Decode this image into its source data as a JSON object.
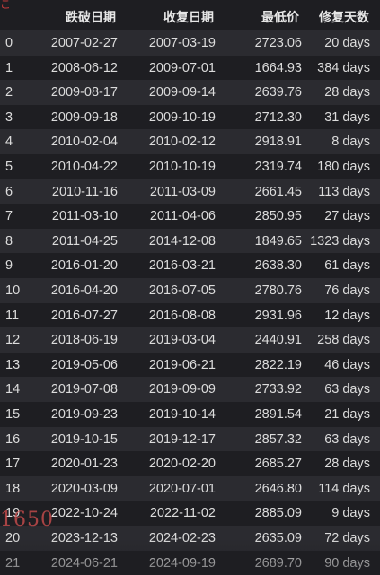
{
  "table": {
    "headers": {
      "index": "",
      "break_date": "跌破日期",
      "recover_date": "收复日期",
      "low_price": "最低价",
      "repair_days": "修复天数"
    },
    "rows": [
      {
        "index": "0",
        "break_date": "2007-02-27",
        "recover_date": "2007-03-19",
        "low_price": "2723.06",
        "repair_days": "20 days"
      },
      {
        "index": "1",
        "break_date": "2008-06-12",
        "recover_date": "2009-07-01",
        "low_price": "1664.93",
        "repair_days": "384 days"
      },
      {
        "index": "2",
        "break_date": "2009-08-17",
        "recover_date": "2009-09-14",
        "low_price": "2639.76",
        "repair_days": "28 days"
      },
      {
        "index": "3",
        "break_date": "2009-09-18",
        "recover_date": "2009-10-19",
        "low_price": "2712.30",
        "repair_days": "31 days"
      },
      {
        "index": "4",
        "break_date": "2010-02-04",
        "recover_date": "2010-02-12",
        "low_price": "2918.91",
        "repair_days": "8 days"
      },
      {
        "index": "5",
        "break_date": "2010-04-22",
        "recover_date": "2010-10-19",
        "low_price": "2319.74",
        "repair_days": "180 days"
      },
      {
        "index": "6",
        "break_date": "2010-11-16",
        "recover_date": "2011-03-09",
        "low_price": "2661.45",
        "repair_days": "113 days"
      },
      {
        "index": "7",
        "break_date": "2011-03-10",
        "recover_date": "2011-04-06",
        "low_price": "2850.95",
        "repair_days": "27 days"
      },
      {
        "index": "8",
        "break_date": "2011-04-25",
        "recover_date": "2014-12-08",
        "low_price": "1849.65",
        "repair_days": "1323 days"
      },
      {
        "index": "9",
        "break_date": "2016-01-20",
        "recover_date": "2016-03-21",
        "low_price": "2638.30",
        "repair_days": "61 days"
      },
      {
        "index": "10",
        "break_date": "2016-04-20",
        "recover_date": "2016-07-05",
        "low_price": "2780.76",
        "repair_days": "76 days"
      },
      {
        "index": "11",
        "break_date": "2016-07-27",
        "recover_date": "2016-08-08",
        "low_price": "2931.96",
        "repair_days": "12 days"
      },
      {
        "index": "12",
        "break_date": "2018-06-19",
        "recover_date": "2019-03-04",
        "low_price": "2440.91",
        "repair_days": "258 days"
      },
      {
        "index": "13",
        "break_date": "2019-05-06",
        "recover_date": "2019-06-21",
        "low_price": "2822.19",
        "repair_days": "46 days"
      },
      {
        "index": "14",
        "break_date": "2019-07-08",
        "recover_date": "2019-09-09",
        "low_price": "2733.92",
        "repair_days": "63 days"
      },
      {
        "index": "15",
        "break_date": "2019-09-23",
        "recover_date": "2019-10-14",
        "low_price": "2891.54",
        "repair_days": "21 days"
      },
      {
        "index": "16",
        "break_date": "2019-10-15",
        "recover_date": "2019-12-17",
        "low_price": "2857.32",
        "repair_days": "63 days"
      },
      {
        "index": "17",
        "break_date": "2020-01-23",
        "recover_date": "2020-02-20",
        "low_price": "2685.27",
        "repair_days": "28 days"
      },
      {
        "index": "18",
        "break_date": "2020-03-09",
        "recover_date": "2020-07-01",
        "low_price": "2646.80",
        "repair_days": "114 days"
      },
      {
        "index": "19",
        "break_date": "2022-10-24",
        "recover_date": "2022-11-02",
        "low_price": "2885.09",
        "repair_days": "9 days"
      },
      {
        "index": "20",
        "break_date": "2023-12-13",
        "recover_date": "2024-02-23",
        "low_price": "2635.09",
        "repair_days": "72 days"
      },
      {
        "index": "21",
        "break_date": "2024-06-21",
        "recover_date": "2024-09-19",
        "low_price": "2689.70",
        "repair_days": "90 days"
      }
    ]
  },
  "overlay": {
    "watermark_text": "1650",
    "corner_mark": "こ"
  },
  "colors": {
    "background": "#1e1e22",
    "row_alt": "#2b2b30",
    "text": "#dcdcdc",
    "header_text": "#e6e6e6",
    "watermark": "#d65050"
  }
}
